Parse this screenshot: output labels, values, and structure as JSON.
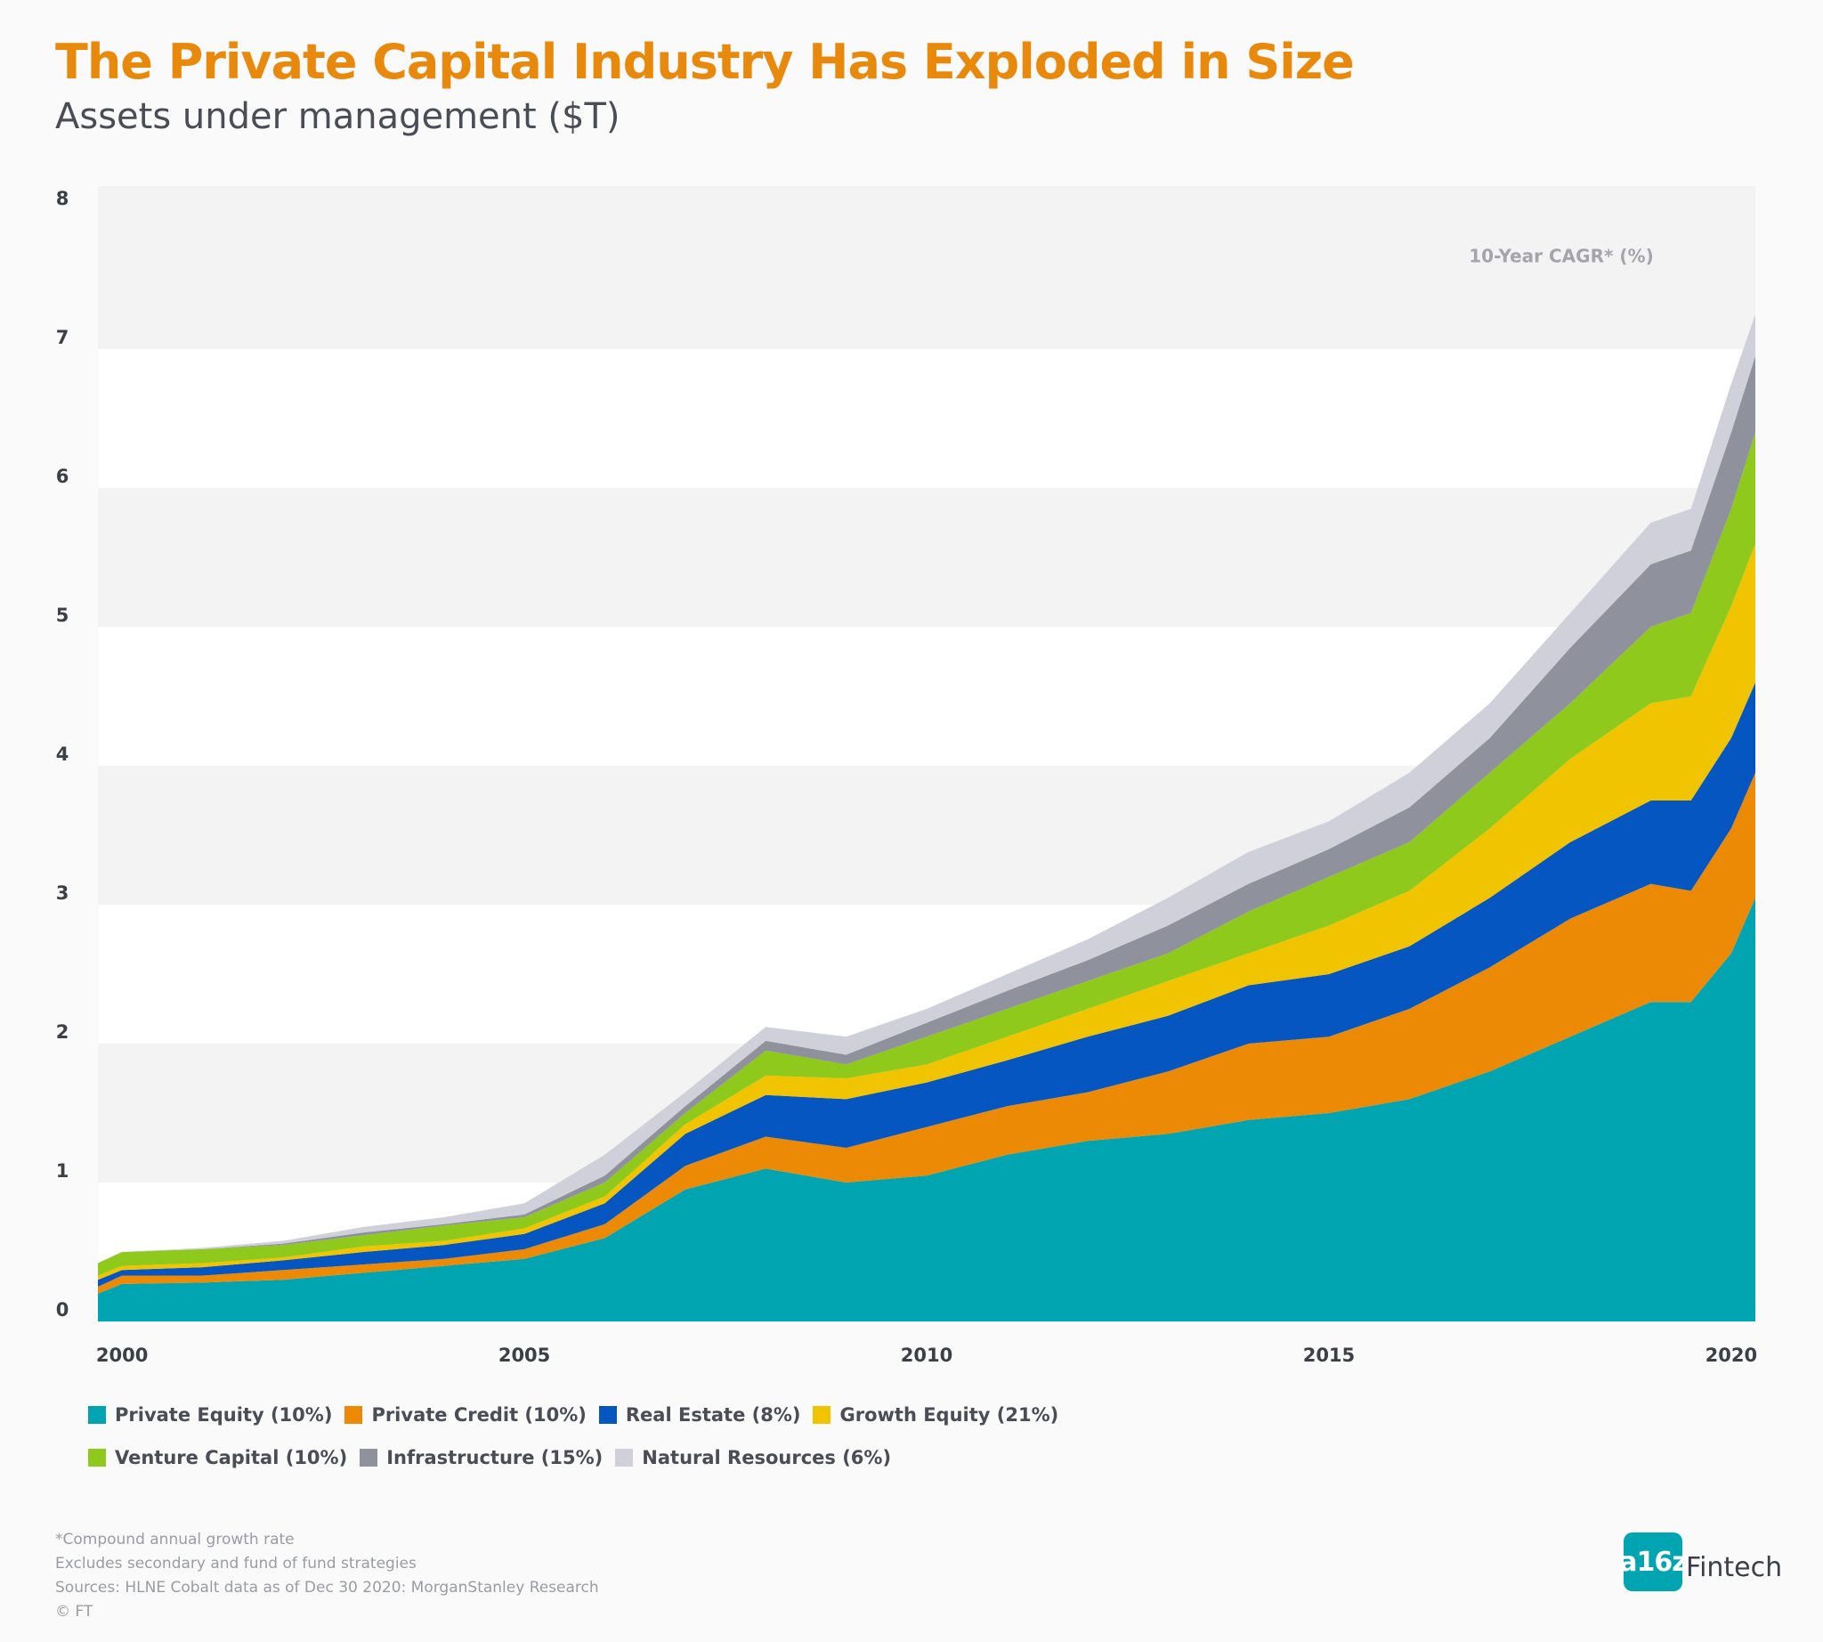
{
  "chart_data": {
    "type": "stacked-area",
    "title": "The Private Capital Industry Has Exploded in Size",
    "subtitle": "Assets under management ($T)",
    "annotation": "10-Year CAGR* (%)",
    "x": [
      1999.7,
      2000,
      2001,
      2002,
      2003,
      2004,
      2005,
      2006,
      2007,
      2008,
      2009,
      2010,
      2011,
      2012,
      2013,
      2014,
      2015,
      2016,
      2017,
      2018,
      2019,
      2019.5,
      2020,
      2020.3
    ],
    "xlim": [
      1999.7,
      2020.3
    ],
    "xticks": [
      2000,
      2005,
      2010,
      2015,
      2020
    ],
    "ylim": [
      0,
      8
    ],
    "yticks": [
      0,
      1,
      2,
      3,
      4,
      5,
      6,
      7,
      8
    ],
    "grid": true,
    "series": [
      {
        "name": "Private Equity (10%)",
        "color": "#00a5b1",
        "values": [
          0.2,
          0.27,
          0.28,
          0.3,
          0.35,
          0.4,
          0.45,
          0.6,
          0.95,
          1.1,
          1.0,
          1.05,
          1.2,
          1.3,
          1.35,
          1.45,
          1.5,
          1.6,
          1.8,
          2.05,
          2.3,
          2.3,
          2.65,
          3.05
        ]
      },
      {
        "name": "Private Credit (10%)",
        "color": "#ec8a06",
        "values": [
          0.05,
          0.06,
          0.05,
          0.07,
          0.06,
          0.05,
          0.07,
          0.1,
          0.17,
          0.23,
          0.25,
          0.35,
          0.35,
          0.35,
          0.45,
          0.55,
          0.55,
          0.65,
          0.75,
          0.85,
          0.85,
          0.8,
          0.9,
          0.9
        ]
      },
      {
        "name": "Real Estate (8%)",
        "color": "#0656c2",
        "values": [
          0.05,
          0.04,
          0.06,
          0.07,
          0.09,
          0.1,
          0.11,
          0.15,
          0.23,
          0.3,
          0.35,
          0.32,
          0.33,
          0.4,
          0.4,
          0.42,
          0.45,
          0.45,
          0.5,
          0.55,
          0.6,
          0.65,
          0.65,
          0.65
        ]
      },
      {
        "name": "Growth Equity (21%)",
        "color": "#f0c400",
        "values": [
          0.03,
          0.03,
          0.03,
          0.02,
          0.04,
          0.03,
          0.04,
          0.05,
          0.07,
          0.14,
          0.15,
          0.13,
          0.17,
          0.2,
          0.25,
          0.23,
          0.35,
          0.4,
          0.5,
          0.6,
          0.7,
          0.75,
          0.95,
          1.0
        ]
      },
      {
        "name": "Venture Capital (10%)",
        "color": "#8ec91b",
        "values": [
          0.09,
          0.1,
          0.1,
          0.09,
          0.08,
          0.11,
          0.08,
          0.1,
          0.08,
          0.18,
          0.1,
          0.2,
          0.2,
          0.2,
          0.2,
          0.3,
          0.35,
          0.35,
          0.4,
          0.4,
          0.55,
          0.6,
          0.7,
          0.8
        ]
      },
      {
        "name": "Infrastructure (15%)",
        "color": "#8f929c",
        "values": [
          0,
          0,
          0,
          0.01,
          0.02,
          0.01,
          0.02,
          0.05,
          0.05,
          0.07,
          0.07,
          0.1,
          0.13,
          0.15,
          0.2,
          0.2,
          0.2,
          0.25,
          0.25,
          0.4,
          0.45,
          0.45,
          0.55,
          0.55
        ]
      },
      {
        "name": "Natural Resources (6%)",
        "color": "#cfd0da",
        "values": [
          0,
          0,
          0.01,
          0.02,
          0.04,
          0.05,
          0.08,
          0.15,
          0.1,
          0.1,
          0.13,
          0.1,
          0.12,
          0.15,
          0.2,
          0.23,
          0.2,
          0.25,
          0.25,
          0.25,
          0.3,
          0.3,
          0.35,
          0.3
        ]
      }
    ]
  },
  "footnotes": [
    "*Compound annual growth rate",
    "Excludes secondary and fund of fund strategies",
    "Sources: HLNE Cobalt data as of Dec 30 2020: MorganStanley Research",
    "© FT"
  ],
  "logo": {
    "mark": "a16z",
    "text": "Fintech"
  }
}
